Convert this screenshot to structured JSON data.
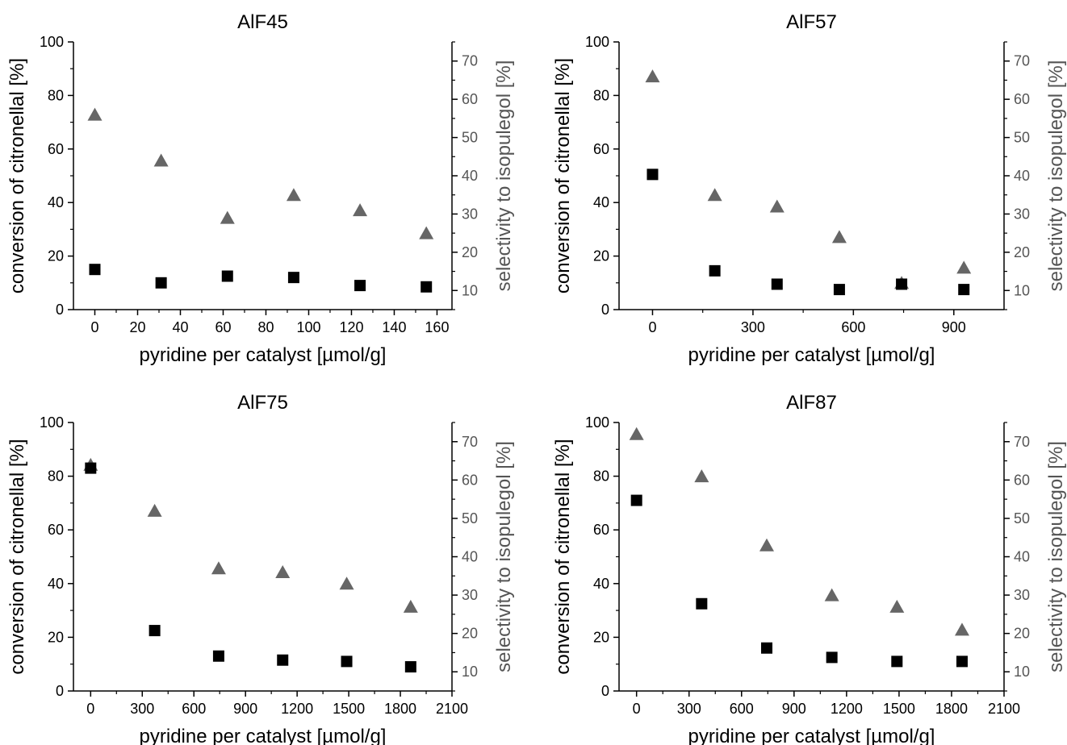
{
  "y_label": "conversion of citronellal [%]",
  "y2_label": "selectivity to isopulegol [%]",
  "x_label": "pyridine per catalyst [µmol/g]",
  "colors": {
    "conversion": "#000000",
    "selectivity": "#666666",
    "axis": "#000000",
    "axis2_text": "#555555"
  },
  "chart_data": [
    {
      "type": "scatter",
      "title": "AlF45",
      "xlim": [
        -10,
        167
      ],
      "xticks": [
        0,
        20,
        40,
        60,
        80,
        100,
        120,
        140,
        160
      ],
      "ylim": [
        0,
        100
      ],
      "yticks": [
        0,
        20,
        40,
        60,
        80,
        100
      ],
      "y2lim": [
        5,
        75
      ],
      "y2ticks": [
        10,
        20,
        30,
        40,
        50,
        60,
        70
      ],
      "series": [
        {
          "axis": "left",
          "marker": "square",
          "x": [
            0,
            31,
            62,
            93,
            124,
            155
          ],
          "y": [
            15,
            10,
            12.5,
            12,
            9,
            8.5
          ]
        },
        {
          "axis": "right",
          "marker": "triangle",
          "x": [
            0,
            31,
            62,
            93,
            124,
            155
          ],
          "y": [
            56,
            44,
            29,
            35,
            31,
            25
          ]
        }
      ]
    },
    {
      "type": "scatter",
      "title": "AlF57",
      "xlim": [
        -100,
        1050
      ],
      "xticks": [
        0,
        300,
        600,
        900
      ],
      "ylim": [
        0,
        100
      ],
      "yticks": [
        0,
        20,
        40,
        60,
        80,
        100
      ],
      "y2lim": [
        5,
        75
      ],
      "y2ticks": [
        10,
        20,
        30,
        40,
        50,
        60,
        70
      ],
      "series": [
        {
          "axis": "left",
          "marker": "square",
          "x": [
            0,
            186,
            372,
            558,
            744,
            930
          ],
          "y": [
            50.5,
            14.5,
            9.5,
            7.5,
            9.5,
            7.5
          ]
        },
        {
          "axis": "right",
          "marker": "triangle",
          "x": [
            0,
            186,
            372,
            558,
            744,
            930
          ],
          "y": [
            66,
            35,
            32,
            24,
            12,
            16
          ]
        }
      ]
    },
    {
      "type": "scatter",
      "title": "AlF75",
      "xlim": [
        -100,
        2100
      ],
      "xticks": [
        0,
        300,
        600,
        900,
        1200,
        1500,
        1800,
        2100
      ],
      "ylim": [
        0,
        100
      ],
      "yticks": [
        0,
        20,
        40,
        60,
        80,
        100
      ],
      "y2lim": [
        5,
        75
      ],
      "y2ticks": [
        10,
        20,
        30,
        40,
        50,
        60,
        70
      ],
      "series": [
        {
          "axis": "left",
          "marker": "square",
          "x": [
            0,
            372,
            744,
            1116,
            1488,
            1860
          ],
          "y": [
            83,
            22.5,
            13,
            11.5,
            11,
            9
          ]
        },
        {
          "axis": "right",
          "marker": "triangle",
          "x": [
            0,
            372,
            744,
            1116,
            1488,
            1860
          ],
          "y": [
            64,
            52,
            37,
            36,
            33,
            27
          ]
        }
      ]
    },
    {
      "type": "scatter",
      "title": "AlF87",
      "xlim": [
        -100,
        2100
      ],
      "xticks": [
        0,
        300,
        600,
        900,
        1200,
        1500,
        1800,
        2100
      ],
      "ylim": [
        0,
        100
      ],
      "yticks": [
        0,
        20,
        40,
        60,
        80,
        100
      ],
      "y2lim": [
        5,
        75
      ],
      "y2ticks": [
        10,
        20,
        30,
        40,
        50,
        60,
        70
      ],
      "series": [
        {
          "axis": "left",
          "marker": "square",
          "x": [
            0,
            372,
            744,
            1116,
            1488,
            1860
          ],
          "y": [
            71,
            32.5,
            16,
            12.5,
            11,
            11
          ]
        },
        {
          "axis": "right",
          "marker": "triangle",
          "x": [
            0,
            372,
            744,
            1116,
            1488,
            1860
          ],
          "y": [
            72,
            61,
            43,
            30,
            27,
            21
          ]
        }
      ]
    }
  ]
}
